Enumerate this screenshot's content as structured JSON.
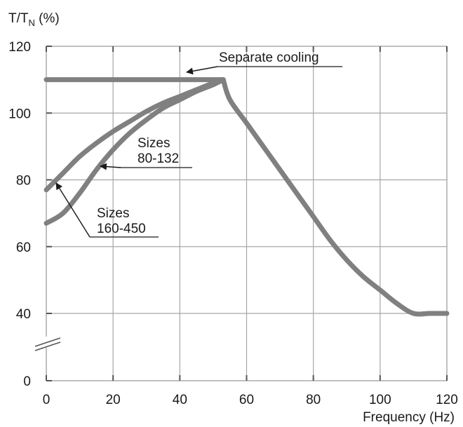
{
  "chart_data": {
    "type": "line",
    "title": "",
    "ylabel": {
      "main": "T/T",
      "sub": "N",
      "suffix": " (%)"
    },
    "xlabel": "Frequency (Hz)",
    "xlim": [
      0,
      120
    ],
    "ylim_display": [
      0,
      120
    ],
    "axis_break": true,
    "grid": true,
    "x_ticks": [
      0,
      20,
      40,
      60,
      80,
      100,
      120
    ],
    "y_ticks": [
      0,
      40,
      60,
      80,
      100,
      120
    ],
    "x_tick_labels": [
      "0",
      "20",
      "40",
      "60",
      "80",
      "100",
      "120"
    ],
    "y_tick_labels": [
      "0",
      "40",
      "60",
      "80",
      "100",
      "120"
    ],
    "colors": {
      "curve": "#808080",
      "grid": "#a6a6a6",
      "frame": "#a6a6a6",
      "text": "#1a1a1a"
    },
    "series": [
      {
        "label": "Separate cooling",
        "points": [
          [
            0,
            110
          ],
          [
            53,
            110
          ]
        ]
      },
      {
        "label": "Sizes 80-132",
        "points": [
          [
            0,
            77
          ],
          [
            5,
            82
          ],
          [
            10,
            87
          ],
          [
            15,
            91
          ],
          [
            20,
            94.5
          ],
          [
            25,
            97.5
          ],
          [
            30,
            100.5
          ],
          [
            35,
            103
          ],
          [
            40,
            105
          ],
          [
            45,
            107
          ],
          [
            50,
            109
          ],
          [
            53,
            110
          ]
        ]
      },
      {
        "label": "Sizes 160-450",
        "points": [
          [
            0,
            67
          ],
          [
            5,
            70
          ],
          [
            10,
            76
          ],
          [
            15,
            83
          ],
          [
            20,
            89
          ],
          [
            25,
            94
          ],
          [
            30,
            98
          ],
          [
            35,
            101.5
          ],
          [
            40,
            104
          ],
          [
            45,
            106.5
          ],
          [
            50,
            108.5
          ],
          [
            53,
            110
          ]
        ]
      },
      {
        "label": "",
        "points": [
          [
            53,
            110
          ],
          [
            55,
            104
          ],
          [
            60,
            97
          ],
          [
            65,
            90
          ],
          [
            70,
            83
          ],
          [
            75,
            76
          ],
          [
            80,
            69
          ],
          [
            85,
            62
          ],
          [
            90,
            56
          ],
          [
            95,
            51
          ],
          [
            100,
            47
          ],
          [
            105,
            43
          ],
          [
            110,
            40
          ],
          [
            115,
            37.5
          ],
          [
            120,
            35.5
          ]
        ]
      }
    ],
    "annotations": {
      "separate_cooling": "Separate cooling",
      "sizes_80_line1": "Sizes",
      "sizes_80_line2": "80-132",
      "sizes_160_line1": "Sizes",
      "sizes_160_line2": "160-450"
    }
  }
}
